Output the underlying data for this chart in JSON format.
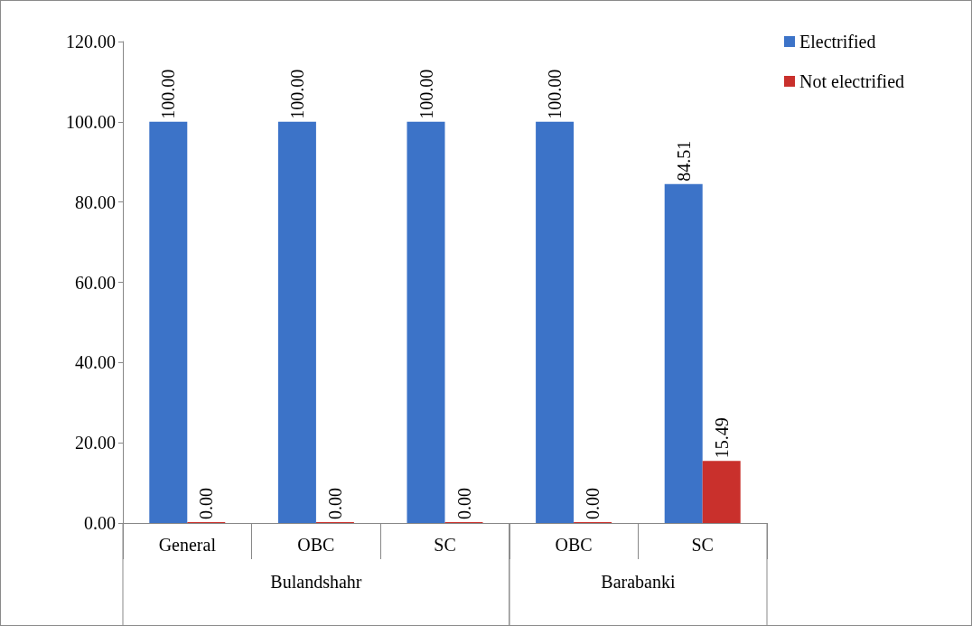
{
  "chart_data": {
    "type": "bar",
    "categories": [
      "General",
      "OBC",
      "SC",
      "OBC",
      "SC"
    ],
    "series": [
      {
        "name": "Electrified",
        "color": "#3c73c8",
        "values": [
          100,
          100,
          100,
          100,
          84.51
        ],
        "value_labels": [
          "100.00",
          "100.00",
          "100.00",
          "100.00",
          "84.51"
        ]
      },
      {
        "name": "Not electrified",
        "color": "#c9302c",
        "values": [
          0,
          0,
          0,
          0,
          15.49
        ],
        "value_labels": [
          "0.00",
          "0.00",
          "0.00",
          "0.00",
          "15.49"
        ]
      }
    ],
    "annotations": [
      "Bulandshahr",
      "Barabanki"
    ],
    "ylim": [
      0,
      120
    ],
    "yticks": [
      {
        "value": 0,
        "label": "0.00"
      },
      {
        "value": 20,
        "label": "20.00"
      },
      {
        "value": 40,
        "label": "40.00"
      },
      {
        "value": 60,
        "label": "60.00"
      },
      {
        "value": 80,
        "label": "80.00"
      },
      {
        "value": 100,
        "label": "100.00"
      },
      {
        "value": 120,
        "label": "120.00"
      }
    ],
    "grid": false,
    "legend": "top right"
  }
}
